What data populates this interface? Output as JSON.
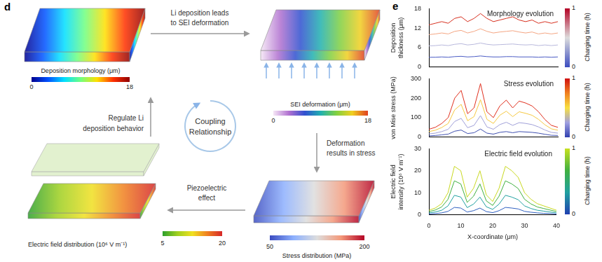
{
  "diagram": {
    "panel_label": "d",
    "center": [
      "Coupling",
      "Relationship"
    ],
    "steps": [
      {
        "text": [
          "Li deposition leads",
          "to SEI deformation"
        ]
      },
      {
        "text": [
          "Deformation",
          "results in stress"
        ]
      },
      {
        "text": [
          "Piezoelectric",
          "effect"
        ]
      },
      {
        "text": [
          "Regulate Li",
          "deposition behavior"
        ]
      }
    ],
    "nodes": [
      {
        "label": "Deposition morphology (μm)",
        "range": [
          0,
          18
        ],
        "ticks": [
          0,
          18
        ],
        "colors": [
          "#00008f",
          "#0050ff",
          "#00dfff",
          "#70ff80",
          "#ffe000",
          "#ff3000",
          "#8f0000"
        ]
      },
      {
        "label": "SEI deformation (μm)",
        "range": [
          0,
          18
        ],
        "ticks": [
          0,
          18
        ],
        "colors": [
          "#f5e6f5",
          "#b070d0",
          "#3050d0",
          "#20b0b0",
          "#80d040",
          "#f0d020",
          "#e04020"
        ]
      },
      {
        "label": "Stress distribution (MPa)",
        "range": [
          50,
          200
        ],
        "ticks": [
          50,
          200
        ],
        "colors": [
          "#3b4cc0",
          "#8db0fe",
          "#dddddd",
          "#f49a7b",
          "#b40426"
        ]
      },
      {
        "label": "Electric field distribution (10⁶ V m⁻¹)",
        "range": [
          5,
          20
        ],
        "ticks": [
          5,
          20
        ],
        "colors": [
          "#2ca02c",
          "#a0d020",
          "#f0e020",
          "#f08020",
          "#d62728"
        ]
      }
    ]
  },
  "chart_panel_label": "e",
  "chart_data": [
    {
      "type": "line",
      "annotation": "Morphology evolution",
      "y_label": [
        "Deposition",
        "thickness (μm)"
      ],
      "x": [
        0,
        2,
        4,
        6,
        8,
        10,
        12,
        14,
        16,
        18,
        20,
        22,
        24,
        26,
        28,
        30,
        32,
        34,
        36,
        38,
        40
      ],
      "xlim": [
        0,
        40
      ],
      "ylim": [
        0,
        18
      ],
      "yticks": [
        0,
        6,
        12,
        18
      ],
      "tick_labels": "y",
      "grid": false,
      "series": [
        {
          "color": "#4a5bc4",
          "values": [
            3,
            3,
            3.1,
            3,
            3.2,
            3.3,
            3.1,
            3.2,
            3.4,
            3.2,
            3.1,
            3.1,
            3.2,
            3.2,
            3.1,
            3.1,
            3.1,
            3,
            3.1,
            3,
            3.1
          ]
        },
        {
          "color": "#b8b8dc",
          "values": [
            6.5,
            6.6,
            6.8,
            6.6,
            7,
            7.2,
            6.8,
            7,
            7.4,
            7,
            6.8,
            6.9,
            7,
            7.1,
            6.9,
            6.8,
            6.9,
            6.6,
            6.8,
            6.6,
            6.8
          ]
        },
        {
          "color": "#f4a582",
          "values": [
            10,
            10.2,
            10.5,
            10.2,
            11,
            11.3,
            10.5,
            11,
            11.8,
            11,
            10.5,
            10.8,
            11,
            11.2,
            10.8,
            10.5,
            10.8,
            10.2,
            10.5,
            10.2,
            10.5
          ]
        },
        {
          "color": "#d7301f",
          "values": [
            13,
            13.5,
            14,
            13.5,
            15,
            15.5,
            14,
            15,
            16.5,
            15,
            14,
            14.5,
            15,
            15.5,
            14.5,
            14,
            14.5,
            13.5,
            14,
            13.5,
            14
          ]
        }
      ],
      "colorbar": {
        "label": "Charging time (h)",
        "range": [
          0,
          1
        ],
        "ticks": [
          0,
          1
        ],
        "colors": [
          "#3b4cc0",
          "#dddddd",
          "#b40426"
        ]
      }
    },
    {
      "type": "line",
      "annotation": "Stress evolution",
      "y_label": "von Mise stress (MPa)",
      "x": [
        0,
        2,
        4,
        6,
        8,
        10,
        12,
        14,
        16,
        18,
        20,
        22,
        24,
        26,
        28,
        30,
        32,
        34,
        36,
        38,
        40
      ],
      "xlim": [
        0,
        40
      ],
      "ylim": [
        0,
        300
      ],
      "yticks": [
        0,
        100,
        200,
        300
      ],
      "tick_labels": "y",
      "grid": false,
      "series": [
        {
          "color": "#4050b0",
          "values": [
            6,
            8,
            11,
            15,
            30,
            36,
            18,
            22,
            41,
            20,
            15,
            24,
            28,
            22,
            28,
            26,
            24,
            20,
            14,
            9,
            8
          ]
        },
        {
          "color": "#a0a0d8",
          "values": [
            16,
            20,
            28,
            40,
            80,
            96,
            48,
            60,
            110,
            52,
            40,
            64,
            76,
            60,
            74,
            70,
            64,
            52,
            36,
            24,
            20
          ]
        },
        {
          "color": "#f5c842",
          "values": [
            28,
            35,
            49,
            70,
            140,
            168,
            84,
            105,
            192,
            91,
            70,
            112,
            133,
            105,
            130,
            122,
            112,
            91,
            63,
            42,
            35
          ]
        },
        {
          "color": "#e0301e",
          "values": [
            40,
            50,
            70,
            100,
            200,
            240,
            120,
            150,
            275,
            130,
            100,
            160,
            190,
            150,
            185,
            175,
            160,
            130,
            90,
            60,
            50
          ]
        }
      ],
      "colorbar": {
        "label": "Charging time (h)",
        "range": [
          0,
          1
        ],
        "ticks": [
          0,
          1
        ],
        "colors": [
          "#3040b0",
          "#a0a0e0",
          "#f8e040",
          "#f08020",
          "#d01010"
        ]
      }
    },
    {
      "type": "line",
      "annotation": "Electric field evolution",
      "y_label": [
        "Electric field",
        "intensity (10⁶ V m⁻¹)"
      ],
      "x_label": "X-coordinate (μm)",
      "x": [
        0,
        2,
        4,
        6,
        8,
        10,
        12,
        14,
        16,
        18,
        20,
        22,
        24,
        26,
        28,
        30,
        32,
        34,
        36,
        38,
        40
      ],
      "xlim": [
        0,
        40
      ],
      "xticks": [
        0,
        10,
        20,
        30,
        40
      ],
      "ylim": [
        0,
        30
      ],
      "yticks": [
        0,
        10,
        20,
        30
      ],
      "grid": false,
      "series": [
        {
          "color": "#3060c0",
          "values": [
            0.3,
            0.5,
            0.8,
            1.5,
            3.3,
            3,
            1.2,
            1.8,
            3,
            1.4,
            0.9,
            1.8,
            3.3,
            3,
            2.6,
            1.5,
            1.1,
            0.8,
            0.6,
            0.5,
            0.3
          ]
        },
        {
          "color": "#20a0a0",
          "values": [
            0.8,
            1.2,
            2,
            4,
            8.8,
            8,
            3.2,
            4.8,
            8,
            3.6,
            2.4,
            4.8,
            8.8,
            8,
            6.8,
            4,
            2.8,
            2,
            1.6,
            1.2,
            0.8
          ]
        },
        {
          "color": "#40b040",
          "values": [
            1.4,
            2.1,
            3.5,
            7,
            15.4,
            14,
            5.6,
            8.4,
            14,
            6.3,
            4.2,
            8.4,
            15.4,
            14,
            11.9,
            7,
            4.9,
            3.5,
            2.8,
            2.1,
            1.4
          ]
        },
        {
          "color": "#c8d820",
          "values": [
            2,
            3,
            5,
            10,
            22,
            20,
            8,
            12,
            20,
            9,
            6,
            12,
            22,
            20,
            17,
            10,
            7,
            5,
            4,
            3,
            2
          ]
        }
      ],
      "colorbar": {
        "label": "Charging time (h)",
        "range": [
          0,
          1
        ],
        "ticks": [
          0,
          1
        ],
        "colors": [
          "#2040b0",
          "#20a0a0",
          "#40b040",
          "#c8e020"
        ]
      }
    }
  ]
}
